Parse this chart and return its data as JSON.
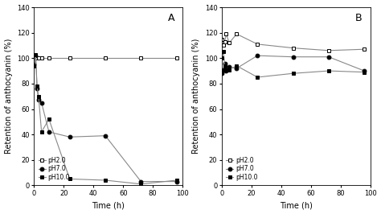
{
  "A": {
    "pH2": {
      "x": [
        0,
        1,
        2,
        3,
        5,
        10,
        24,
        48,
        72,
        96
      ],
      "y": [
        100,
        100,
        100,
        100,
        100,
        100,
        100,
        100,
        100,
        100
      ]
    },
    "pH7": {
      "x": [
        0,
        1,
        2,
        3,
        5,
        10,
        24,
        48,
        72,
        96
      ],
      "y": [
        95,
        102,
        76,
        67,
        65,
        42,
        38,
        39,
        3,
        3
      ]
    },
    "pH10": {
      "x": [
        0,
        1,
        2,
        3,
        5,
        10,
        24,
        48,
        72,
        96
      ],
      "y": [
        94,
        103,
        78,
        70,
        42,
        52,
        5,
        4,
        1,
        4
      ]
    }
  },
  "B": {
    "pH2": {
      "x": [
        0,
        1,
        2,
        3,
        5,
        10,
        24,
        48,
        72,
        96
      ],
      "y": [
        115,
        110,
        113,
        119,
        112,
        119,
        111,
        108,
        106,
        107
      ]
    },
    "pH7": {
      "x": [
        0,
        1,
        2,
        3,
        5,
        10,
        24,
        48,
        72,
        96
      ],
      "y": [
        88,
        91,
        96,
        90,
        93,
        92,
        102,
        101,
        101,
        90
      ]
    },
    "pH10": {
      "x": [
        0,
        1,
        2,
        3,
        5,
        10,
        24,
        48,
        72,
        96
      ],
      "y": [
        100,
        105,
        94,
        91,
        91,
        94,
        85,
        88,
        90,
        89
      ]
    }
  },
  "ylabel": "Retention of anthocyanin (%)",
  "xlabel": "Time (h)",
  "ylim": [
    0,
    140
  ],
  "xlim": [
    0,
    100
  ],
  "yticks": [
    0,
    20,
    40,
    60,
    80,
    100,
    120,
    140
  ],
  "xticks": [
    0,
    20,
    40,
    60,
    80,
    100
  ],
  "line_color": "#888888",
  "marker_size": 3.5,
  "line_width": 0.8,
  "tick_fontsize": 6,
  "label_fontsize": 7,
  "legend_fontsize": 5.5
}
